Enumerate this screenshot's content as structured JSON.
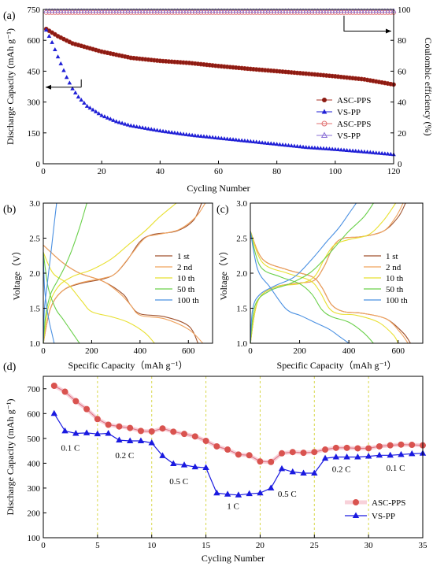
{
  "colors": {
    "asc_pps": "#a93226",
    "asc_pps_fill": "#8b1a12",
    "vs_pp": "#1f1fd6",
    "ce_asc": "#e07070",
    "ce_vs": "#8a6fd6",
    "rate_asc_line": "#e07a8a",
    "rate_asc_marker": "#d9534f",
    "rate_vs": "#1a1ae0",
    "vline": "#d8d84a",
    "cycle_colors": [
      "#a0522d",
      "#f0a35e",
      "#e8e030",
      "#6ad04a",
      "#4a90e2"
    ]
  },
  "chart_data": [
    {
      "id": "a",
      "panel_label": "(a)",
      "type": "line",
      "xlabel": "Cycling Number",
      "ylabel": "Discharge Capacity (mAh g⁻¹)",
      "y2label": "Coulombic efficiency (%)",
      "xlim": [
        0,
        120
      ],
      "ylim": [
        0,
        750
      ],
      "y2lim": [
        0,
        100
      ],
      "xticks": [
        0,
        20,
        40,
        60,
        80,
        100,
        120
      ],
      "yticks": [
        0,
        150,
        300,
        450,
        600,
        750
      ],
      "y2ticks": [
        0,
        20,
        40,
        60,
        80,
        100
      ],
      "legend": [
        "ASC-PPS",
        "VS-PP",
        "ASC-PPS",
        "VS-PP"
      ],
      "legend_position": "right",
      "series": [
        {
          "name": "ASC-PPS",
          "axis": "left",
          "x": [
            1,
            5,
            10,
            20,
            30,
            40,
            50,
            60,
            70,
            80,
            90,
            100,
            110,
            120
          ],
          "values": [
            655,
            620,
            585,
            545,
            515,
            500,
            490,
            475,
            462,
            450,
            438,
            425,
            410,
            385
          ]
        },
        {
          "name": "VS-PP",
          "axis": "left",
          "x": [
            1,
            3,
            5,
            8,
            10,
            12,
            15,
            20,
            25,
            30,
            40,
            50,
            60,
            70,
            80,
            90,
            100,
            110,
            120
          ],
          "values": [
            650,
            590,
            520,
            420,
            365,
            325,
            280,
            235,
            205,
            185,
            160,
            140,
            125,
            110,
            95,
            80,
            70,
            58,
            45
          ]
        },
        {
          "name": "ASC-PPS",
          "axis": "right",
          "x": [
            1,
            120
          ],
          "values": [
            98,
            98
          ]
        },
        {
          "name": "VS-PP",
          "axis": "right",
          "x": [
            1,
            120
          ],
          "values": [
            99,
            99
          ]
        }
      ]
    },
    {
      "id": "b",
      "panel_label": "(b)",
      "type": "line",
      "xlabel": "Specific Capacity（mAh g⁻¹）",
      "ylabel": "Voltage（V）",
      "xlim": [
        0,
        700
      ],
      "ylim": [
        1.0,
        3.0
      ],
      "xticks": [
        0,
        200,
        400,
        600
      ],
      "yticks": [
        1.0,
        1.5,
        2.0,
        2.5,
        3.0
      ],
      "legend": [
        "1 st",
        "2 nd",
        "10 th",
        "50 th",
        "100 th"
      ],
      "legend_position": "right",
      "series": [
        {
          "name": "1 st",
          "kind": "discharge",
          "x": [
            0,
            80,
            150,
            250,
            330,
            360,
            400,
            500,
            600,
            640
          ],
          "values": [
            2.4,
            2.15,
            2.0,
            1.88,
            1.7,
            1.55,
            1.42,
            1.38,
            1.25,
            1.0
          ]
        },
        {
          "name": "1 st",
          "kind": "charge",
          "x": [
            0,
            30,
            80,
            150,
            250,
            300,
            350,
            400,
            450,
            550,
            620,
            655
          ],
          "values": [
            1.0,
            1.5,
            1.75,
            1.85,
            1.92,
            2.0,
            2.2,
            2.45,
            2.55,
            2.6,
            2.75,
            3.0
          ]
        },
        {
          "name": "2 nd",
          "kind": "discharge",
          "x": [
            0,
            80,
            150,
            250,
            320,
            360,
            400,
            500,
            600,
            660
          ],
          "values": [
            2.4,
            2.15,
            2.0,
            1.88,
            1.7,
            1.55,
            1.4,
            1.35,
            1.2,
            1.0
          ]
        },
        {
          "name": "2 nd",
          "kind": "charge",
          "x": [
            0,
            30,
            80,
            150,
            250,
            300,
            360,
            420,
            470,
            560,
            630,
            670
          ],
          "values": [
            1.0,
            1.5,
            1.75,
            1.86,
            1.93,
            2.0,
            2.25,
            2.5,
            2.55,
            2.62,
            2.8,
            3.0
          ]
        },
        {
          "name": "10 th",
          "kind": "discharge",
          "x": [
            0,
            40,
            100,
            160,
            200,
            280,
            350,
            420,
            460
          ],
          "values": [
            2.3,
            2.0,
            1.85,
            1.6,
            1.45,
            1.38,
            1.3,
            1.15,
            1.0
          ]
        },
        {
          "name": "10 th",
          "kind": "charge",
          "x": [
            0,
            20,
            60,
            120,
            200,
            280,
            350,
            420,
            480,
            550
          ],
          "values": [
            1.0,
            1.5,
            1.8,
            1.95,
            2.05,
            2.2,
            2.4,
            2.6,
            2.8,
            3.0
          ]
        },
        {
          "name": "50 th",
          "kind": "discharge",
          "x": [
            0,
            20,
            50,
            80,
            120,
            150
          ],
          "values": [
            2.3,
            1.8,
            1.5,
            1.35,
            1.15,
            1.0
          ]
        },
        {
          "name": "50 th",
          "kind": "charge",
          "x": [
            0,
            10,
            30,
            60,
            90,
            120,
            150,
            180
          ],
          "values": [
            1.0,
            1.4,
            1.7,
            1.9,
            2.1,
            2.35,
            2.65,
            3.0
          ]
        },
        {
          "name": "100 th",
          "kind": "discharge",
          "x": [
            0,
            5,
            15,
            25,
            35,
            45
          ],
          "values": [
            2.3,
            1.8,
            1.5,
            1.3,
            1.15,
            1.0
          ]
        },
        {
          "name": "100 th",
          "kind": "charge",
          "x": [
            0,
            5,
            15,
            25,
            35,
            45,
            55
          ],
          "values": [
            1.0,
            1.5,
            1.8,
            2.1,
            2.4,
            2.7,
            3.0
          ]
        }
      ]
    },
    {
      "id": "c",
      "panel_label": "(c)",
      "type": "line",
      "xlabel": "Specific Capacity（mAh g⁻¹）",
      "ylabel": "Voltage（V）",
      "xlim": [
        0,
        700
      ],
      "ylim": [
        1.0,
        3.0
      ],
      "xticks": [
        0,
        200,
        400,
        600
      ],
      "yticks": [
        1.0,
        1.5,
        2.0,
        2.5,
        3.0
      ],
      "legend": [
        "1 st",
        "2 nd",
        "10 th",
        "50 th",
        "100 th"
      ],
      "legend_position": "right",
      "series": [
        {
          "name": "1 st",
          "kind": "discharge",
          "x": [
            0,
            50,
            150,
            250,
            290,
            330,
            380,
            450,
            550,
            620,
            650
          ],
          "values": [
            2.6,
            2.2,
            2.05,
            1.95,
            1.8,
            1.55,
            1.45,
            1.43,
            1.35,
            1.15,
            1.0
          ]
        },
        {
          "name": "1 st",
          "kind": "charge",
          "x": [
            0,
            30,
            100,
            200,
            260,
            300,
            340,
            380,
            450,
            540,
            600,
            630
          ],
          "values": [
            1.0,
            1.6,
            1.8,
            1.86,
            1.9,
            2.1,
            2.4,
            2.5,
            2.52,
            2.6,
            2.8,
            3.0
          ]
        },
        {
          "name": "2 nd",
          "kind": "discharge",
          "x": [
            0,
            50,
            150,
            250,
            290,
            330,
            380,
            450,
            550,
            610,
            640
          ],
          "values": [
            2.6,
            2.2,
            2.05,
            1.95,
            1.8,
            1.55,
            1.45,
            1.43,
            1.35,
            1.15,
            1.0
          ]
        },
        {
          "name": "2 nd",
          "kind": "charge",
          "x": [
            0,
            30,
            100,
            200,
            260,
            300,
            340,
            380,
            450,
            540,
            590,
            620
          ],
          "values": [
            1.0,
            1.6,
            1.8,
            1.86,
            1.9,
            2.1,
            2.4,
            2.5,
            2.52,
            2.6,
            2.8,
            3.0
          ]
        },
        {
          "name": "10 th",
          "kind": "discharge",
          "x": [
            0,
            50,
            150,
            240,
            280,
            320,
            360,
            430,
            520,
            580,
            600
          ],
          "values": [
            2.6,
            2.15,
            2.0,
            1.9,
            1.75,
            1.5,
            1.42,
            1.4,
            1.3,
            1.12,
            1.0
          ]
        },
        {
          "name": "10 th",
          "kind": "charge",
          "x": [
            0,
            30,
            100,
            200,
            260,
            300,
            340,
            400,
            480,
            540,
            590
          ],
          "values": [
            1.0,
            1.6,
            1.8,
            1.85,
            1.95,
            2.2,
            2.4,
            2.48,
            2.55,
            2.75,
            3.0
          ]
        },
        {
          "name": "50 th",
          "kind": "discharge",
          "x": [
            0,
            40,
            120,
            200,
            250,
            290,
            330,
            400,
            460,
            500
          ],
          "values": [
            2.6,
            2.1,
            1.95,
            1.85,
            1.7,
            1.48,
            1.38,
            1.3,
            1.15,
            1.0
          ]
        },
        {
          "name": "50 th",
          "kind": "charge",
          "x": [
            0,
            20,
            80,
            160,
            240,
            300,
            350,
            400,
            460,
            500
          ],
          "values": [
            1.0,
            1.55,
            1.75,
            1.85,
            2.0,
            2.2,
            2.4,
            2.6,
            2.8,
            3.0
          ]
        },
        {
          "name": "100 th",
          "kind": "discharge",
          "x": [
            0,
            30,
            80,
            130,
            160,
            200,
            260,
            320,
            360,
            400
          ],
          "values": [
            2.6,
            2.05,
            1.8,
            1.55,
            1.45,
            1.4,
            1.3,
            1.2,
            1.1,
            1.0
          ]
        },
        {
          "name": "100 th",
          "kind": "charge",
          "x": [
            0,
            10,
            40,
            100,
            180,
            250,
            310,
            360,
            400,
            430
          ],
          "values": [
            1.0,
            1.5,
            1.7,
            1.82,
            1.95,
            2.2,
            2.45,
            2.65,
            2.85,
            3.0
          ]
        }
      ]
    },
    {
      "id": "d",
      "panel_label": "(d)",
      "type": "line",
      "xlabel": "Cycling Number",
      "ylabel": "Discharge Capacity (mAh g⁻¹)",
      "xlim": [
        0,
        35
      ],
      "ylim": [
        100,
        750
      ],
      "xticks": [
        0,
        5,
        10,
        15,
        20,
        25,
        30,
        35
      ],
      "yticks": [
        100,
        200,
        300,
        400,
        500,
        600,
        700
      ],
      "vlines": [
        5,
        10,
        15,
        20,
        25,
        30
      ],
      "legend": [
        "ASC-PPS",
        "VS-PP"
      ],
      "legend_position": "bottom-right",
      "annotations": [
        {
          "text": "0.1 C",
          "x": 2.5,
          "y": 450
        },
        {
          "text": "0.2 C",
          "x": 7.5,
          "y": 420
        },
        {
          "text": "0.5 C",
          "x": 12.5,
          "y": 315
        },
        {
          "text": "1 C",
          "x": 17.5,
          "y": 215
        },
        {
          "text": "0.5 C",
          "x": 22.5,
          "y": 265
        },
        {
          "text": "0.2 C",
          "x": 27.5,
          "y": 365
        },
        {
          "text": "0.1 C",
          "x": 32.5,
          "y": 370
        }
      ],
      "x": [
        1,
        2,
        3,
        4,
        5,
        6,
        7,
        8,
        9,
        10,
        11,
        12,
        13,
        14,
        15,
        16,
        17,
        18,
        19,
        20,
        21,
        22,
        23,
        24,
        25,
        26,
        27,
        28,
        29,
        30,
        31,
        32,
        33,
        34,
        35
      ],
      "series": [
        {
          "name": "ASC-PPS",
          "values": [
            712,
            688,
            650,
            618,
            578,
            555,
            548,
            542,
            530,
            528,
            540,
            527,
            518,
            508,
            490,
            468,
            455,
            435,
            432,
            407,
            405,
            440,
            445,
            442,
            445,
            455,
            462,
            462,
            460,
            460,
            468,
            472,
            475,
            474,
            472
          ]
        },
        {
          "name": "VS-PP",
          "values": [
            600,
            530,
            520,
            522,
            518,
            520,
            493,
            490,
            490,
            482,
            430,
            398,
            393,
            385,
            382,
            280,
            275,
            272,
            277,
            280,
            300,
            378,
            365,
            360,
            360,
            420,
            425,
            425,
            425,
            428,
            432,
            432,
            435,
            438,
            440
          ]
        }
      ]
    }
  ]
}
